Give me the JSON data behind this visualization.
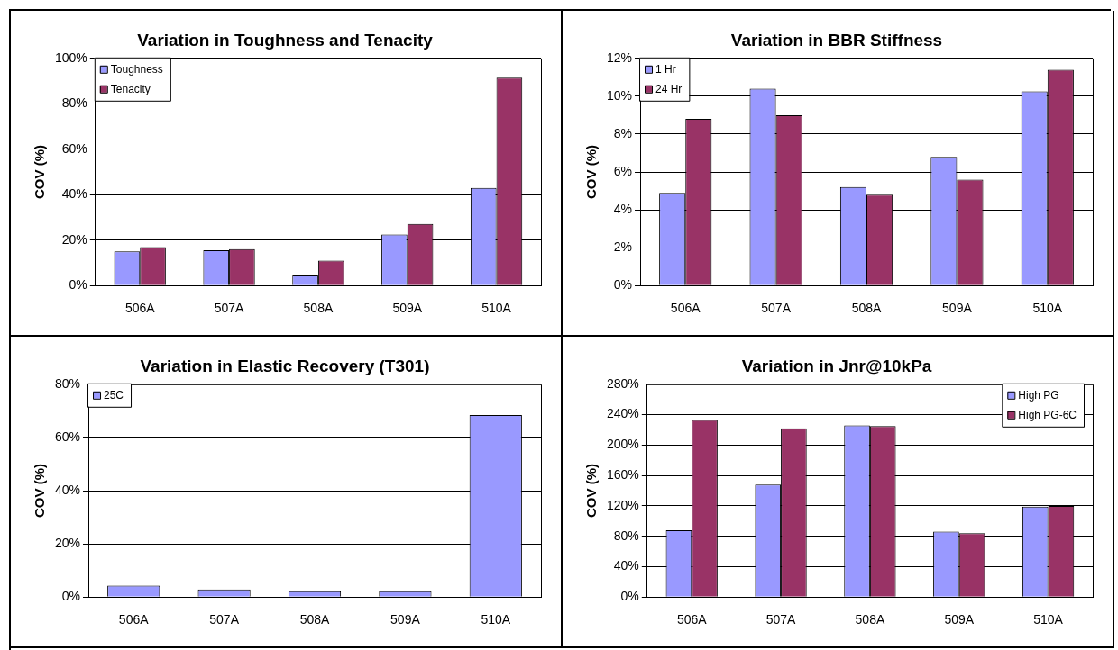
{
  "chart_data": [
    {
      "type": "bar",
      "title": "Variation in Toughness and Tenacity",
      "ylabel": "COV (%)",
      "categories": [
        "506A",
        "507A",
        "508A",
        "509A",
        "510A"
      ],
      "series": [
        {
          "name": "Toughness",
          "color": "#9999ff",
          "values": [
            15.0,
            15.5,
            4.4,
            22.5,
            43.0
          ]
        },
        {
          "name": "Tenacity",
          "color": "#993366",
          "values": [
            16.9,
            16.0,
            11.0,
            27.1,
            91.5
          ]
        }
      ],
      "ylim": [
        0,
        100
      ],
      "yticks": [
        {
          "value": 0,
          "label": "0%"
        },
        {
          "value": 20,
          "label": "20%"
        },
        {
          "value": 40,
          "label": "40%"
        },
        {
          "value": 60,
          "label": "60%"
        },
        {
          "value": 80,
          "label": "80%"
        },
        {
          "value": 100,
          "label": "100%"
        }
      ],
      "grid": "y",
      "legend": "top left"
    },
    {
      "type": "bar",
      "title": "Variation in BBR Stiffness",
      "ylabel": "COV (%)",
      "categories": [
        "506A",
        "507A",
        "508A",
        "509A",
        "510A"
      ],
      "series": [
        {
          "name": "1 Hr",
          "color": "#9999ff",
          "values": [
            4.9,
            10.4,
            5.2,
            6.8,
            10.25
          ]
        },
        {
          "name": "24 Hr",
          "color": "#993366",
          "values": [
            8.8,
            9.0,
            4.8,
            5.6,
            11.4
          ]
        }
      ],
      "ylim": [
        0,
        12
      ],
      "yticks": [
        {
          "value": 0,
          "label": "0%"
        },
        {
          "value": 2,
          "label": "2%"
        },
        {
          "value": 4,
          "label": "4%"
        },
        {
          "value": 6,
          "label": "6%"
        },
        {
          "value": 8,
          "label": "8%"
        },
        {
          "value": 10,
          "label": "10%"
        },
        {
          "value": 12,
          "label": "12%"
        }
      ],
      "grid": "y",
      "legend": "top left"
    },
    {
      "type": "bar",
      "title": "Variation in Elastic Recovery (T301)",
      "ylabel": "COV (%)",
      "categories": [
        "506A",
        "507A",
        "508A",
        "509A",
        "510A"
      ],
      "series": [
        {
          "name": "25C",
          "color": "#9999ff",
          "values": [
            4.3,
            2.9,
            2.2,
            2.2,
            68.4
          ]
        }
      ],
      "ylim": [
        0,
        80
      ],
      "yticks": [
        {
          "value": 0,
          "label": "0%"
        },
        {
          "value": 20,
          "label": "20%"
        },
        {
          "value": 40,
          "label": "40%"
        },
        {
          "value": 60,
          "label": "60%"
        },
        {
          "value": 80,
          "label": "80%"
        }
      ],
      "grid": "y",
      "legend": "top left"
    },
    {
      "type": "bar",
      "title": "Variation in Jnr@10kPa",
      "ylabel": "COV (%)",
      "categories": [
        "506A",
        "507A",
        "508A",
        "509A",
        "510A"
      ],
      "series": [
        {
          "name": "High PG",
          "color": "#9999ff",
          "values": [
            88,
            148,
            226,
            86,
            119
          ]
        },
        {
          "name": "High PG-6C",
          "color": "#993366",
          "values": [
            233,
            222,
            225,
            84,
            120
          ]
        }
      ],
      "ylim": [
        0,
        280
      ],
      "yticks": [
        {
          "value": 0,
          "label": "0%"
        },
        {
          "value": 40,
          "label": "40%"
        },
        {
          "value": 80,
          "label": "80%"
        },
        {
          "value": 120,
          "label": "120%"
        },
        {
          "value": 160,
          "label": "160%"
        },
        {
          "value": 200,
          "label": "200%"
        },
        {
          "value": 240,
          "label": "240%"
        },
        {
          "value": 280,
          "label": "280%"
        }
      ],
      "grid": "y",
      "legend": "top right"
    }
  ]
}
